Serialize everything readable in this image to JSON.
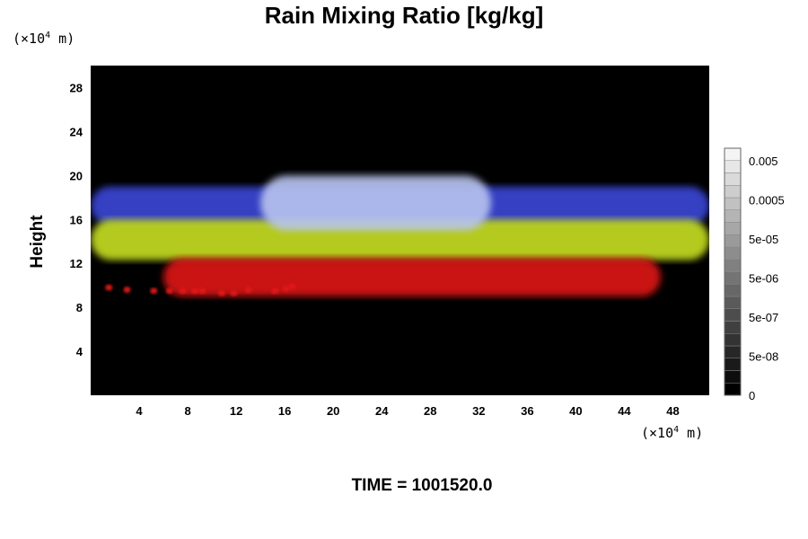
{
  "chart_data": {
    "type": "heatmap",
    "title": "Rain Mixing Ratio [kg/kg]",
    "ylabel": "Height",
    "x_unit_prefix": "(×10",
    "x_unit_exp": "4",
    "x_unit_suffix": " m)",
    "y_unit_prefix": "(×10",
    "y_unit_exp": "4",
    "y_unit_suffix": " m)",
    "xlim": [
      0,
      51
    ],
    "ylim": [
      0,
      30
    ],
    "x_ticks": [
      4,
      8,
      12,
      16,
      20,
      24,
      28,
      32,
      36,
      40,
      44,
      48
    ],
    "y_ticks": [
      4,
      8,
      12,
      16,
      20,
      24,
      28
    ],
    "background_color": "#000000",
    "layers": [
      {
        "color": "#3a46d8",
        "x": [
          0,
          51
        ],
        "y": [
          15.5,
          19
        ]
      },
      {
        "color": "#c8e020",
        "x": [
          0,
          51
        ],
        "y": [
          12.3,
          16
        ]
      },
      {
        "color": "#e01818",
        "x": [
          6,
          47
        ],
        "y": [
          9,
          12.5
        ]
      },
      {
        "color": "#b8c4ef",
        "x": [
          14,
          33
        ],
        "y": [
          15,
          20
        ]
      }
    ],
    "red_drops": [
      {
        "x": 1.5,
        "y": 9.8
      },
      {
        "x": 3.0,
        "y": 9.6
      },
      {
        "x": 5.2,
        "y": 9.5
      },
      {
        "x": 6.5,
        "y": 9.5
      },
      {
        "x": 7.6,
        "y": 9.5
      },
      {
        "x": 8.6,
        "y": 9.5
      },
      {
        "x": 9.2,
        "y": 9.5
      },
      {
        "x": 10.8,
        "y": 9.3
      },
      {
        "x": 11.8,
        "y": 9.3
      },
      {
        "x": 13.0,
        "y": 9.6
      },
      {
        "x": 15.2,
        "y": 9.5
      },
      {
        "x": 16.1,
        "y": 9.7
      },
      {
        "x": 16.6,
        "y": 9.9
      }
    ],
    "colorbar": {
      "tick_labels": [
        "0.005",
        "0.0005",
        "5e-05",
        "5e-06",
        "5e-07",
        "5e-08",
        "0"
      ],
      "levels": 20,
      "color_low": "#000000",
      "color_high": "#f4f4f4"
    }
  },
  "time_label": "TIME = 1001520.0"
}
